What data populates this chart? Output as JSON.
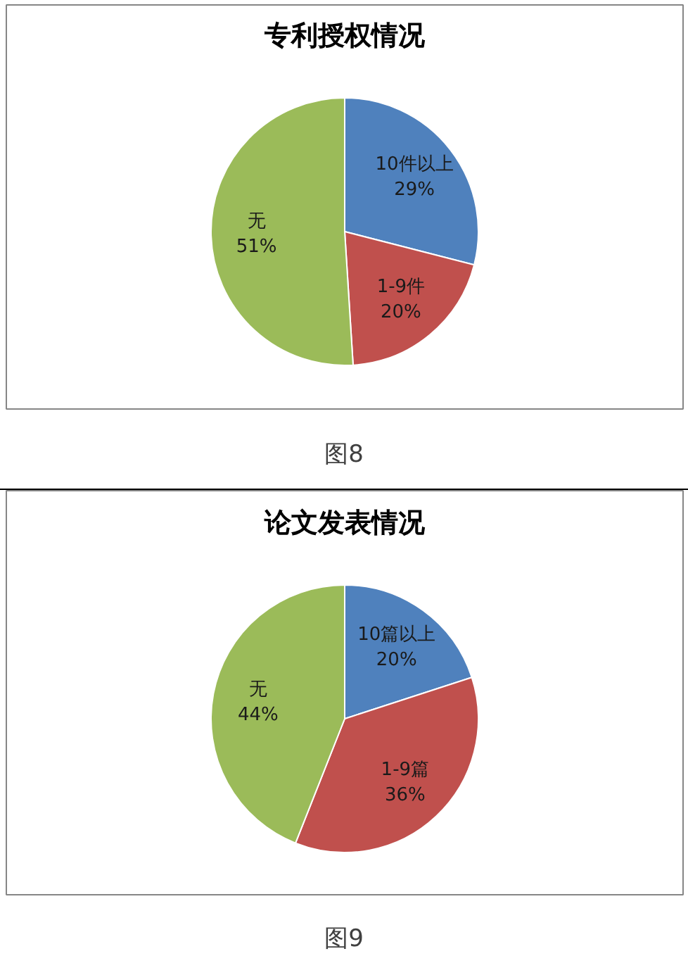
{
  "chart_data": [
    {
      "type": "pie",
      "title": "专利授权情况",
      "categories": [
        "10件以上",
        "1-9件",
        "无"
      ],
      "values": [
        29,
        20,
        51
      ],
      "value_labels": [
        "29%",
        "20%",
        "51%"
      ],
      "colors": [
        "#4f81bd",
        "#c0504d",
        "#9bbb59"
      ],
      "annotations": [
        "图8"
      ]
    },
    {
      "type": "pie",
      "title": "论文发表情况",
      "categories": [
        "10篇以上",
        "1-9篇",
        "无"
      ],
      "values": [
        20,
        36,
        44
      ],
      "value_labels": [
        "20%",
        "36%",
        "44%"
      ],
      "colors": [
        "#4f81bd",
        "#c0504d",
        "#9bbb59"
      ],
      "annotations": [
        "图9"
      ]
    }
  ]
}
